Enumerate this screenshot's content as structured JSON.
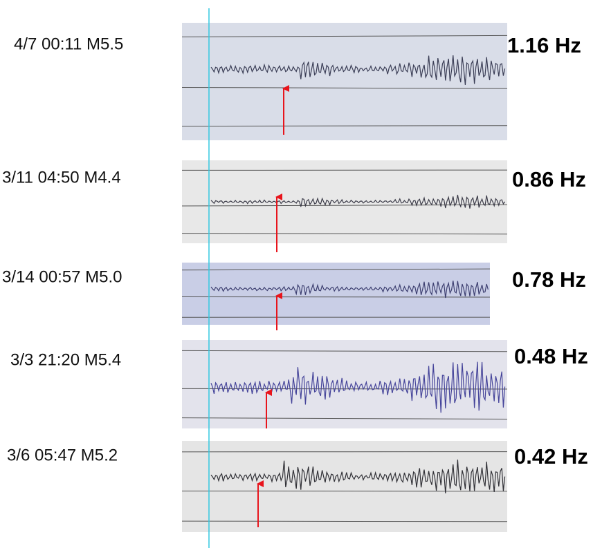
{
  "rows": [
    {
      "label": "4/7 00:11 M5.5",
      "frequency": "1.16 Hz"
    },
    {
      "label": "3/11 04:50 M4.4",
      "frequency": "0.86 Hz"
    },
    {
      "label": "3/14 00:57 M5.0",
      "frequency": "0.78 Hz"
    },
    {
      "label": "3/3 21:20 M5.4",
      "frequency": "0.48 Hz"
    },
    {
      "label": "3/6 05:47 M5.2",
      "frequency": "0.42 Hz"
    }
  ]
}
